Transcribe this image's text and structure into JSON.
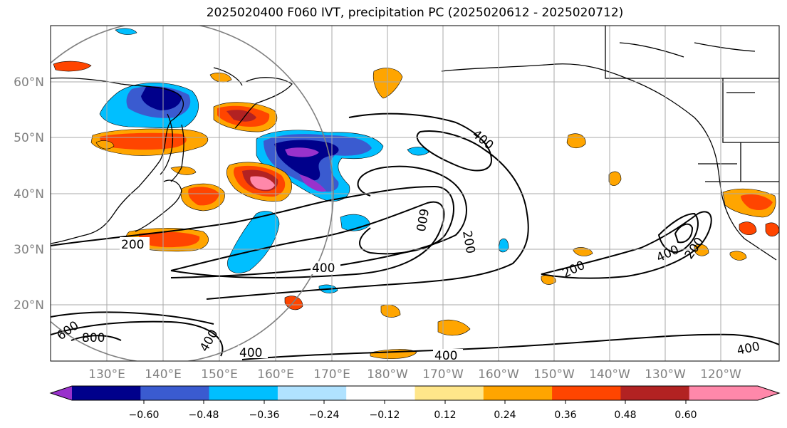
{
  "title": "2025020400 F060 IVT, precipitation PC (2025020612 - 2025020712)",
  "lat_labels": [
    "60°N",
    "50°N",
    "40°N",
    "30°N",
    "20°N"
  ],
  "lon_labels": [
    "130°E",
    "140°E",
    "150°E",
    "160°E",
    "170°E",
    "180°W",
    "170°W",
    "160°W",
    "150°W",
    "140°W",
    "130°W",
    "120°W"
  ],
  "contour_labels": [
    "200",
    "400",
    "400",
    "600",
    "200",
    "200",
    "400",
    "800",
    "600",
    "400",
    "400",
    "400",
    "400",
    "200",
    "400"
  ],
  "colorbar": {
    "ticks": [
      "−0.60",
      "−0.48",
      "−0.36",
      "−0.24",
      "−0.12",
      "0.12",
      "0.24",
      "0.36",
      "0.48",
      "0.60"
    ],
    "colors": [
      "#9932cc",
      "#00008b",
      "#3a5bd0",
      "#00bfff",
      "#b0e2ff",
      "#ffffff",
      "#ffe68a",
      "#ffa500",
      "#ff4500",
      "#b22222",
      "#ff88aa",
      "#ff88aa"
    ]
  }
}
